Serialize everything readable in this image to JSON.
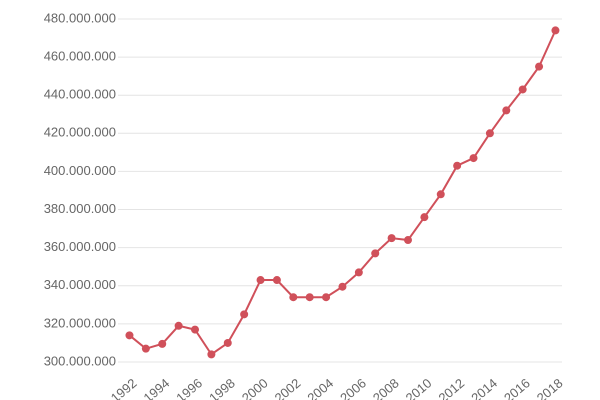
{
  "chart_data": {
    "type": "line",
    "x": [
      1992,
      1993,
      1994,
      1995,
      1996,
      1997,
      1998,
      1999,
      2000,
      2001,
      2002,
      2003,
      2004,
      2005,
      2006,
      2007,
      2008,
      2009,
      2010,
      2011,
      2012,
      2013,
      2014,
      2015,
      2016,
      2017,
      2018
    ],
    "series": [
      {
        "color": "#d0505a",
        "values": [
          314000000,
          307000000,
          309500000,
          319000000,
          317000000,
          304000000,
          310000000,
          325000000,
          343000000,
          343000000,
          334000000,
          334000000,
          334000000,
          339500000,
          347000000,
          357000000,
          365000000,
          364000000,
          376000000,
          388000000,
          403000000,
          407000000,
          420000000,
          432000000,
          443000000,
          455000000,
          474000000
        ]
      }
    ],
    "xlim": [
      1991.3,
      2018.4
    ],
    "xticks": [
      1992,
      1994,
      1996,
      1998,
      2000,
      2002,
      2004,
      2006,
      2008,
      2010,
      2012,
      2014,
      2016,
      2018
    ],
    "ylim": [
      295800000,
      484700000
    ],
    "yticks": [
      {
        "value": 300000000,
        "label": "300.000.000"
      },
      {
        "value": 320000000,
        "label": "320.000.000"
      },
      {
        "value": 340000000,
        "label": "340.000.000"
      },
      {
        "value": 360000000,
        "label": "360.000.000"
      },
      {
        "value": 380000000,
        "label": "380.000.000"
      },
      {
        "value": 400000000,
        "label": "400.000.000"
      },
      {
        "value": 420000000,
        "label": "420.000.000"
      },
      {
        "value": 440000000,
        "label": "440.000.000"
      },
      {
        "value": 460000000,
        "label": "460.000.000"
      },
      {
        "value": 480000000,
        "label": "480.000.000"
      }
    ],
    "grid": true
  }
}
